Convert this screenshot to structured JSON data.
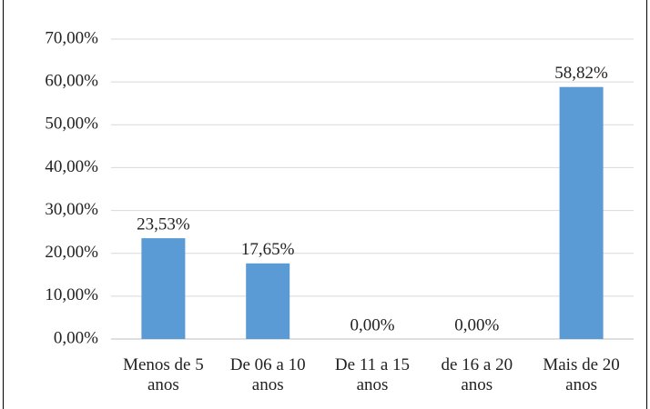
{
  "chart_data": {
    "type": "bar",
    "categories": [
      "Menos de 5 anos",
      "De 06 a 10 anos",
      "De 11 a 15 anos",
      "de 16 a 20 anos",
      "Mais de 20 anos"
    ],
    "values": [
      23.53,
      17.65,
      0,
      0,
      58.82
    ],
    "value_labels": [
      "23,53%",
      "17,65%",
      "0,00%",
      "0,00%",
      "58,82%"
    ],
    "color": "#5b9bd5",
    "ylim": [
      0,
      70
    ],
    "yticks": [
      {
        "value": 0,
        "label": "0,00%"
      },
      {
        "value": 10,
        "label": "10,00%"
      },
      {
        "value": 20,
        "label": "20,00%"
      },
      {
        "value": 30,
        "label": "30,00%"
      },
      {
        "value": 40,
        "label": "40,00%"
      },
      {
        "value": 50,
        "label": "50,00%"
      },
      {
        "value": 60,
        "label": "60,00%"
      },
      {
        "value": 70,
        "label": "70,00%"
      }
    ],
    "grid": true
  }
}
